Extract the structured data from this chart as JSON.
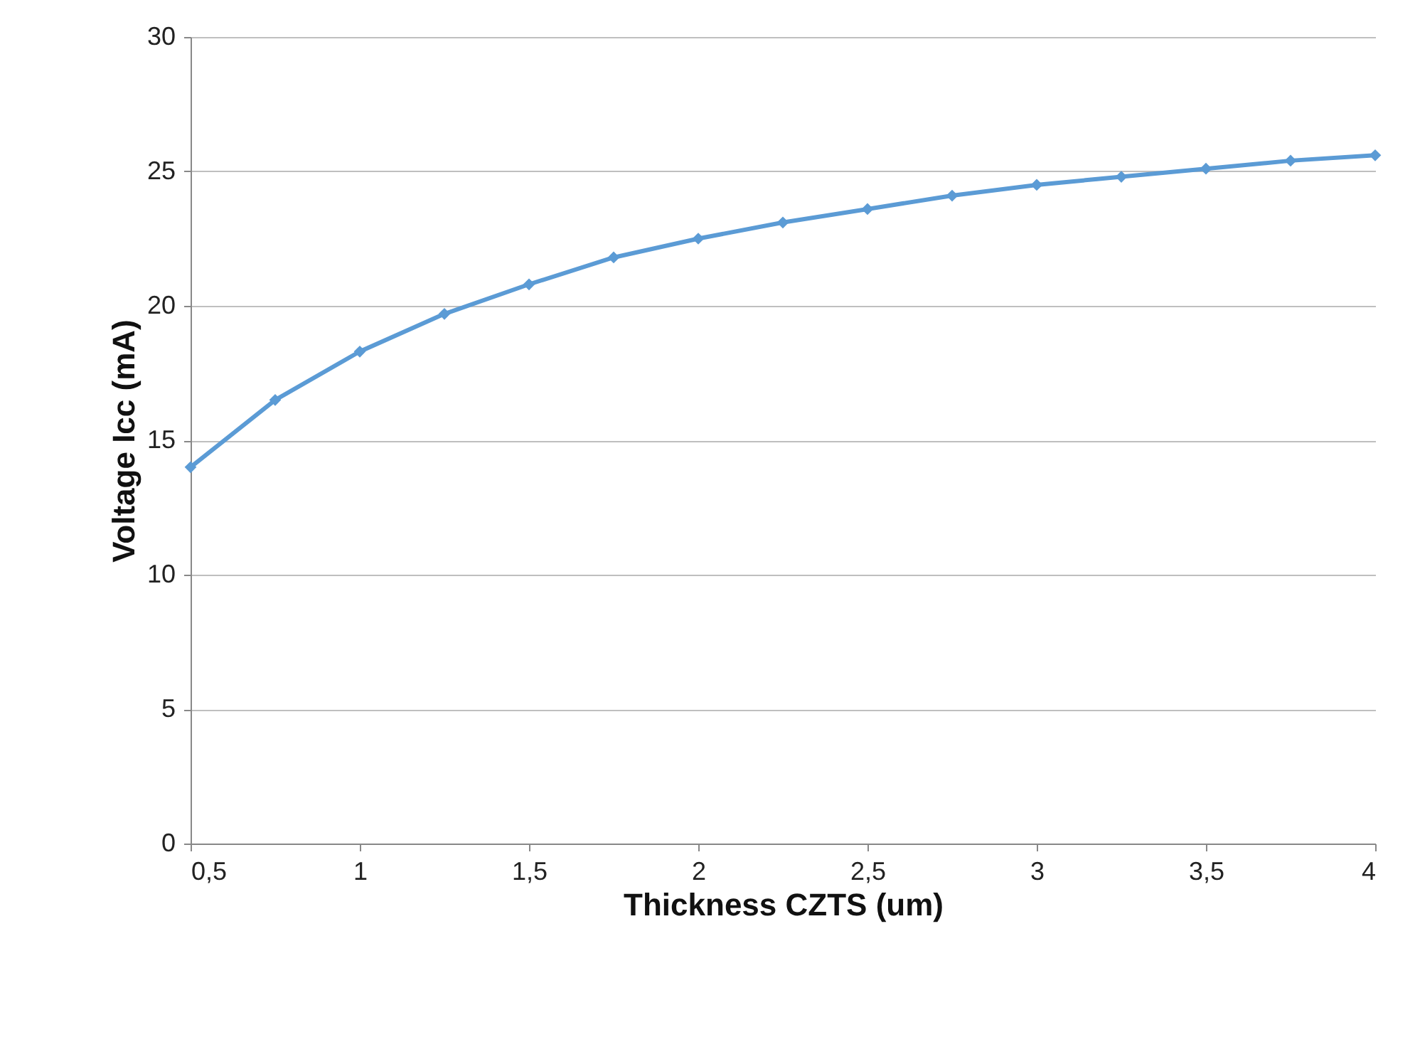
{
  "chart_data": {
    "type": "line",
    "x": [
      0.5,
      0.75,
      1,
      1.25,
      1.5,
      1.75,
      2,
      2.25,
      2.5,
      2.75,
      3,
      3.25,
      3.5,
      3.75,
      4
    ],
    "series": [
      {
        "color": "#5b9bd5",
        "values": [
          14.0,
          16.5,
          18.3,
          19.7,
          20.8,
          21.8,
          22.5,
          23.1,
          23.6,
          24.1,
          24.5,
          24.8,
          25.1,
          25.4,
          25.6
        ]
      }
    ],
    "xlabel": "Thickness CZTS (um)",
    "ylabel": "Voltage Icc (mA)",
    "xlim": [
      0.5,
      4
    ],
    "xticks": [
      {
        "value": 0.5,
        "label": "0,5"
      },
      1,
      {
        "value": 1.5,
        "label": "1,5"
      },
      2,
      {
        "value": 2.5,
        "label": "2,5"
      },
      3,
      {
        "value": 3.5,
        "label": "3,5"
      },
      4
    ],
    "ylim": [
      0,
      30
    ],
    "yticks": [
      0,
      5,
      10,
      15,
      20,
      25,
      30
    ],
    "grid": "y",
    "marker": "diamond",
    "line_style": "solid"
  }
}
